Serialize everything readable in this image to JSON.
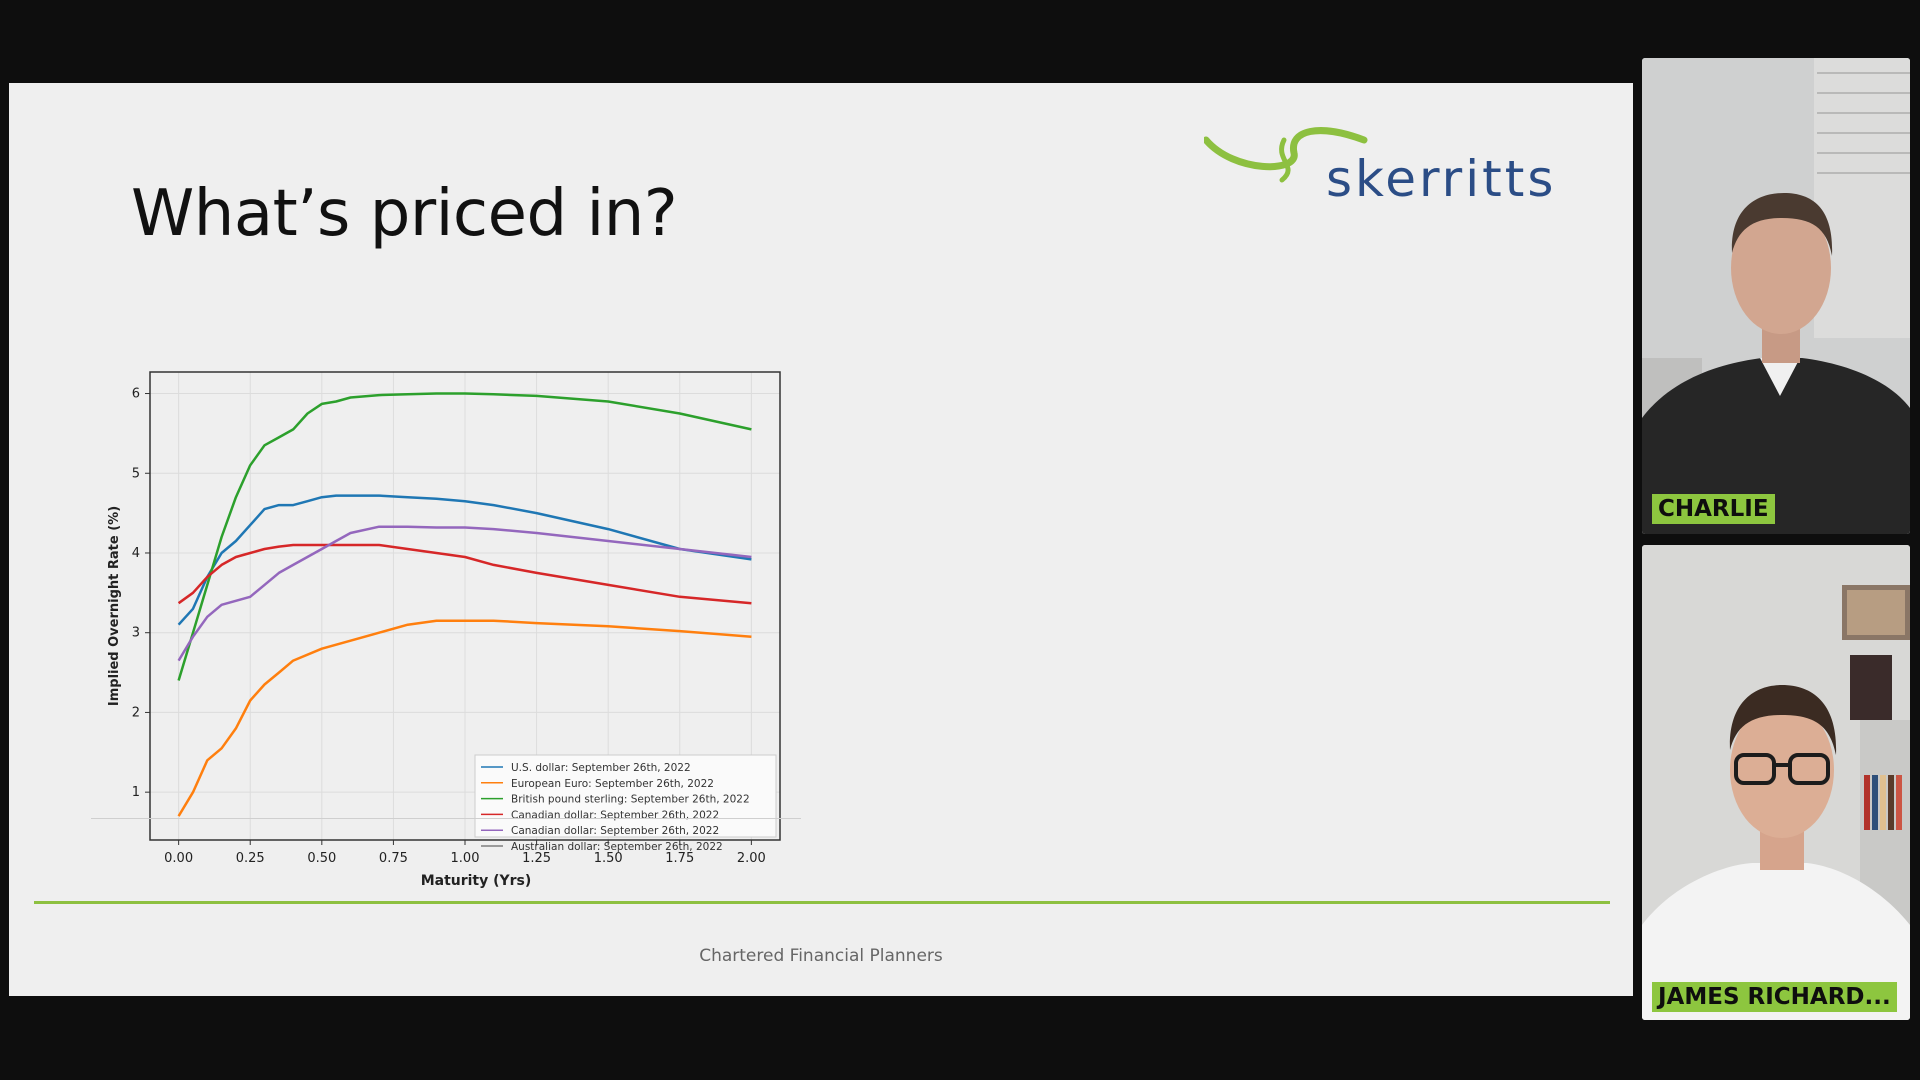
{
  "slide": {
    "title": "What’s priced in?",
    "logo_text": "skerritts",
    "footer": "Chartered Financial Planners"
  },
  "participants": [
    {
      "name": "CHARLIE"
    },
    {
      "name": "JAMES RICHARD..."
    }
  ],
  "colors": {
    "accent_green": "#8dc040",
    "logo_blue": "#2b4d86"
  },
  "chart_data": {
    "type": "line",
    "xlabel": "Maturity (Yrs)",
    "ylabel": "Implied Overnight Rate (%)",
    "xlim": [
      -0.1,
      2.1
    ],
    "ylim": [
      0.4,
      6.27
    ],
    "xticks": [
      "0.00",
      "0.25",
      "0.50",
      "0.75",
      "1.00",
      "1.25",
      "1.50",
      "1.75",
      "2.00"
    ],
    "yticks": [
      "1",
      "2",
      "3",
      "4",
      "5",
      "6"
    ],
    "grid": true,
    "legend_position": "bottom-right",
    "series": [
      {
        "name": "U.S. dollar: September 26th, 2022",
        "color": "#1f77b4",
        "x": [
          0,
          0.05,
          0.1,
          0.15,
          0.2,
          0.25,
          0.3,
          0.35,
          0.4,
          0.45,
          0.5,
          0.55,
          0.6,
          0.7,
          0.8,
          0.9,
          1.0,
          1.1,
          1.25,
          1.5,
          1.75,
          2.0
        ],
        "y": [
          3.1,
          3.3,
          3.7,
          4.0,
          4.15,
          4.35,
          4.55,
          4.6,
          4.6,
          4.65,
          4.7,
          4.72,
          4.72,
          4.72,
          4.7,
          4.68,
          4.65,
          4.6,
          4.5,
          4.3,
          4.05,
          3.92
        ]
      },
      {
        "name": "European Euro: September 26th, 2022",
        "color": "#ff7f0e",
        "x": [
          0,
          0.05,
          0.1,
          0.15,
          0.2,
          0.25,
          0.3,
          0.35,
          0.4,
          0.5,
          0.6,
          0.7,
          0.8,
          0.9,
          1.0,
          1.1,
          1.25,
          1.5,
          1.75,
          2.0
        ],
        "y": [
          0.7,
          1.0,
          1.4,
          1.55,
          1.8,
          2.15,
          2.35,
          2.5,
          2.65,
          2.8,
          2.9,
          3.0,
          3.1,
          3.15,
          3.15,
          3.15,
          3.12,
          3.08,
          3.02,
          2.95
        ]
      },
      {
        "name": "British pound sterling: September 26th, 2022",
        "color": "#2ca02c",
        "x": [
          0,
          0.05,
          0.1,
          0.15,
          0.2,
          0.25,
          0.3,
          0.35,
          0.4,
          0.45,
          0.5,
          0.55,
          0.6,
          0.7,
          0.8,
          0.9,
          1.0,
          1.1,
          1.25,
          1.5,
          1.75,
          2.0
        ],
        "y": [
          2.4,
          3.0,
          3.6,
          4.2,
          4.7,
          5.1,
          5.35,
          5.45,
          5.55,
          5.75,
          5.87,
          5.9,
          5.95,
          5.98,
          5.99,
          6.0,
          6.0,
          5.99,
          5.97,
          5.9,
          5.75,
          5.55
        ]
      },
      {
        "name": "Canadian dollar: September 26th, 2022",
        "color": "#d62728",
        "x": [
          0,
          0.05,
          0.1,
          0.15,
          0.2,
          0.25,
          0.3,
          0.35,
          0.4,
          0.5,
          0.6,
          0.7,
          0.8,
          0.9,
          1.0,
          1.1,
          1.25,
          1.5,
          1.75,
          2.0
        ],
        "y": [
          3.37,
          3.5,
          3.7,
          3.85,
          3.95,
          4.0,
          4.05,
          4.08,
          4.1,
          4.1,
          4.1,
          4.1,
          4.05,
          4.0,
          3.95,
          3.85,
          3.75,
          3.6,
          3.45,
          3.37
        ]
      },
      {
        "name": "Canadian dollar: September 26th, 2022",
        "color": "#9467bd",
        "x": [
          0,
          0.05,
          0.1,
          0.15,
          0.2,
          0.25,
          0.3,
          0.35,
          0.4,
          0.5,
          0.55,
          0.6,
          0.7,
          0.8,
          0.9,
          1.0,
          1.1,
          1.25,
          1.5,
          1.75,
          2.0
        ],
        "y": [
          2.65,
          2.95,
          3.2,
          3.35,
          3.4,
          3.45,
          3.6,
          3.75,
          3.85,
          4.05,
          4.15,
          4.25,
          4.33,
          4.33,
          4.32,
          4.32,
          4.3,
          4.25,
          4.15,
          4.05,
          3.95
        ]
      },
      {
        "name": "Australian dollar: September 26th, 2022",
        "color": "#7f7f7f",
        "x": [],
        "y": []
      }
    ]
  }
}
